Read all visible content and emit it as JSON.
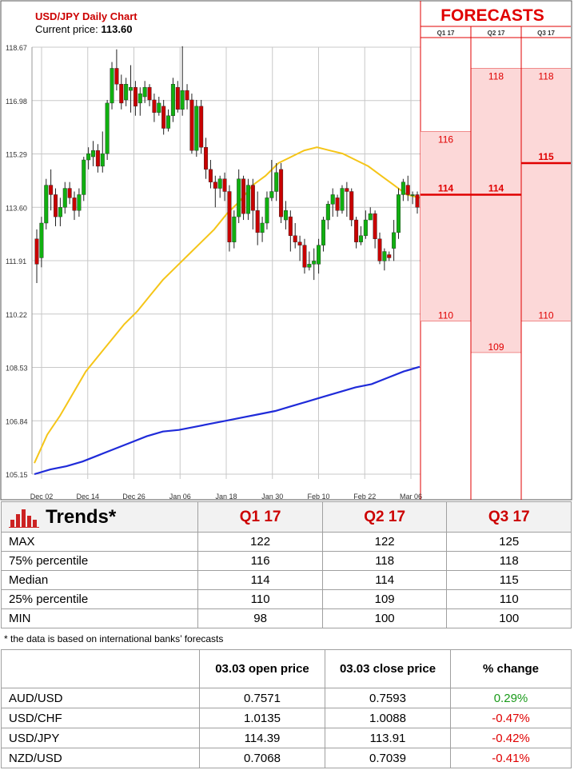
{
  "header": {
    "title": "USD/JPY Daily Chart",
    "price_label": "Current price:",
    "price_value": "113.60"
  },
  "forecasts": {
    "title": "FORECASTS",
    "quarters": [
      "Q1 17",
      "Q2 17",
      "Q3 17"
    ],
    "min_labels": [
      "110",
      "109",
      "110"
    ],
    "median_labels": [
      "114",
      "114",
      "115"
    ],
    "max_labels": [
      "116",
      "118",
      "118"
    ]
  },
  "chart_data": {
    "type": "candlestick",
    "title": "USD/JPY Daily Chart",
    "ylim": [
      105.15,
      118.67
    ],
    "y_ticks": [
      "118.67",
      "116.98",
      "115.29",
      "113.60",
      "111.91",
      "110.22",
      "108.53",
      "106.84",
      "105.15"
    ],
    "x_ticks": [
      "Dec 02",
      "Dec 14",
      "Dec 26",
      "Jan 06",
      "Jan 18",
      "Jan 30",
      "Feb 10",
      "Feb 22",
      "Mar 06"
    ],
    "candles": [
      [
        112.6,
        111.8,
        112.9,
        111.2
      ],
      [
        112.0,
        113.1,
        113.3,
        111.7
      ],
      [
        113.1,
        114.3,
        114.5,
        112.9
      ],
      [
        114.3,
        114.0,
        114.8,
        113.5
      ],
      [
        114.0,
        113.3,
        114.2,
        113.0
      ],
      [
        113.3,
        113.6,
        113.9,
        113.0
      ],
      [
        113.6,
        114.2,
        114.4,
        113.4
      ],
      [
        114.2,
        113.9,
        114.4,
        113.7
      ],
      [
        113.9,
        113.5,
        114.1,
        113.2
      ],
      [
        113.5,
        114.0,
        114.2,
        113.3
      ],
      [
        114.0,
        115.1,
        115.2,
        113.8
      ],
      [
        115.1,
        115.3,
        115.5,
        114.8
      ],
      [
        115.2,
        115.4,
        115.7,
        114.9
      ],
      [
        115.4,
        114.9,
        115.6,
        114.7
      ],
      [
        114.9,
        115.3,
        116.0,
        114.7
      ],
      [
        115.3,
        116.9,
        117.0,
        115.1
      ],
      [
        116.9,
        118.0,
        118.2,
        116.7
      ],
      [
        118.0,
        117.5,
        118.6,
        117.3
      ],
      [
        117.5,
        116.9,
        117.8,
        116.7
      ],
      [
        117.0,
        117.5,
        117.7,
        116.8
      ],
      [
        117.3,
        117.4,
        118.1,
        116.6
      ],
      [
        117.4,
        116.8,
        117.6,
        116.5
      ],
      [
        116.9,
        117.2,
        117.4,
        116.5
      ],
      [
        117.1,
        117.4,
        117.6,
        116.9
      ],
      [
        117.4,
        117.0,
        117.5,
        116.8
      ],
      [
        117.0,
        116.6,
        117.2,
        116.3
      ],
      [
        116.6,
        116.9,
        117.1,
        116.5
      ],
      [
        116.8,
        116.1,
        117.0,
        115.9
      ],
      [
        116.1,
        116.5,
        116.7,
        116.0
      ],
      [
        116.5,
        117.5,
        117.7,
        116.3
      ],
      [
        117.4,
        116.7,
        117.6,
        116.6
      ],
      [
        116.7,
        117.3,
        118.7,
        116.5
      ],
      [
        117.3,
        117.0,
        117.5,
        116.7
      ],
      [
        117.0,
        115.4,
        117.2,
        115.3
      ],
      [
        115.4,
        116.8,
        117.0,
        115.2
      ],
      [
        116.8,
        115.5,
        117.0,
        115.3
      ],
      [
        115.5,
        114.8,
        115.8,
        114.5
      ],
      [
        114.8,
        114.4,
        115.1,
        114.2
      ],
      [
        114.4,
        114.2,
        114.6,
        113.6
      ],
      [
        114.2,
        114.5,
        114.6,
        113.9
      ],
      [
        114.5,
        114.1,
        114.7,
        113.8
      ],
      [
        114.1,
        112.5,
        114.3,
        112.2
      ],
      [
        112.5,
        113.3,
        113.5,
        112.3
      ],
      [
        113.3,
        114.5,
        114.8,
        113.1
      ],
      [
        114.5,
        113.4,
        114.6,
        113.2
      ],
      [
        113.4,
        114.3,
        114.5,
        113.2
      ],
      [
        114.3,
        113.5,
        114.5,
        112.9
      ],
      [
        113.5,
        112.8,
        114.1,
        112.4
      ],
      [
        112.8,
        113.1,
        113.3,
        112.5
      ],
      [
        113.1,
        113.9,
        114.1,
        112.9
      ],
      [
        113.9,
        114.1,
        115.1,
        113.8
      ],
      [
        114.1,
        114.7,
        115.0,
        113.8
      ],
      [
        114.8,
        113.3,
        115.0,
        113.1
      ],
      [
        113.2,
        113.5,
        113.8,
        112.9
      ],
      [
        113.3,
        112.7,
        113.5,
        112.2
      ],
      [
        112.7,
        112.5,
        113.1,
        112.3
      ],
      [
        112.5,
        112.4,
        112.7,
        111.9
      ],
      [
        112.4,
        111.7,
        112.6,
        111.5
      ],
      [
        111.7,
        111.8,
        112.2,
        111.6
      ],
      [
        111.8,
        111.9,
        112.3,
        111.3
      ],
      [
        111.8,
        112.4,
        112.6,
        111.5
      ],
      [
        112.4,
        113.2,
        113.3,
        112.2
      ],
      [
        113.2,
        113.7,
        113.8,
        112.9
      ],
      [
        113.7,
        114.0,
        114.2,
        113.3
      ],
      [
        113.9,
        113.5,
        114.0,
        113.3
      ],
      [
        113.5,
        114.2,
        114.3,
        113.4
      ],
      [
        114.2,
        114.1,
        114.4,
        113.3
      ],
      [
        114.1,
        113.2,
        114.2,
        113.0
      ],
      [
        113.2,
        112.5,
        113.3,
        112.3
      ],
      [
        112.5,
        112.7,
        113.0,
        112.4
      ],
      [
        112.7,
        113.2,
        113.5,
        112.6
      ],
      [
        113.2,
        113.4,
        113.6,
        113.2
      ],
      [
        113.4,
        112.6,
        113.5,
        112.3
      ],
      [
        112.6,
        111.9,
        112.8,
        111.8
      ],
      [
        111.9,
        112.2,
        112.3,
        111.6
      ],
      [
        112.1,
        112.0,
        112.2,
        111.9
      ],
      [
        112.3,
        112.8,
        113.2,
        111.9
      ],
      [
        112.8,
        114.0,
        114.2,
        112.6
      ],
      [
        114.0,
        114.4,
        114.5,
        113.8
      ],
      [
        114.3,
        114.0,
        114.6,
        113.8
      ],
      [
        114.0,
        114.0,
        114.1,
        113.7
      ],
      [
        114.0,
        113.6,
        114.1,
        113.4
      ]
    ],
    "sma50": [
      105.5,
      106.4,
      107.0,
      107.7,
      108.4,
      108.9,
      109.4,
      109.9,
      110.3,
      110.8,
      111.3,
      111.7,
      112.1,
      112.5,
      112.9,
      113.4,
      113.8,
      114.3,
      114.6,
      115.0,
      115.2,
      115.4,
      115.5,
      115.4,
      115.3,
      115.1,
      114.9,
      114.6,
      114.3,
      114.0,
      113.9
    ],
    "sma200": [
      105.15,
      105.3,
      105.4,
      105.55,
      105.75,
      105.95,
      106.15,
      106.35,
      106.5,
      106.55,
      106.65,
      106.75,
      106.85,
      106.95,
      107.05,
      107.15,
      107.3,
      107.45,
      107.6,
      107.75,
      107.9,
      108.0,
      108.2,
      108.4,
      108.55
    ],
    "series": [
      {
        "name": "",
        "color": "#f5c518"
      },
      {
        "name": "",
        "color": "#1f2bd9"
      }
    ],
    "forecast_bands": [
      {
        "quarter": "Q1 17",
        "min": 110,
        "median": 114,
        "max": 116
      },
      {
        "quarter": "Q2 17",
        "min": 109,
        "median": 114,
        "max": 118
      },
      {
        "quarter": "Q3 17",
        "min": 110,
        "median": 115,
        "max": 118
      }
    ],
    "colors": {
      "bull": "#10b010",
      "bear": "#c80000",
      "band_fill": "#fcd8d8",
      "band_line": "#e00000",
      "grid": "#c8c8c8"
    }
  },
  "trends": {
    "title": "Trends*",
    "columns": [
      "Q1 17",
      "Q2 17",
      "Q3 17"
    ],
    "rows": [
      {
        "label": "MAX",
        "values": [
          "122",
          "122",
          "125"
        ]
      },
      {
        "label": "75% percentile",
        "values": [
          "116",
          "118",
          "118"
        ]
      },
      {
        "label": "Median",
        "values": [
          "114",
          "114",
          "115"
        ]
      },
      {
        "label": "25% percentile",
        "values": [
          "110",
          "109",
          "110"
        ]
      },
      {
        "label": "MIN",
        "values": [
          "98",
          "100",
          "100"
        ]
      }
    ],
    "note": "* the data is based on international banks’ forecasts"
  },
  "fx_table": {
    "headers": [
      "",
      "03.03 open price",
      "03.03 close price",
      "% change"
    ],
    "rows": [
      {
        "pair": "AUD/USD",
        "open": "0.7571",
        "close": "0.7593",
        "change": "0.29%",
        "dir": "pos"
      },
      {
        "pair": "USD/CHF",
        "open": "1.0135",
        "close": "1.0088",
        "change": "-0.47%",
        "dir": "neg"
      },
      {
        "pair": "USD/JPY",
        "open": "114.39",
        "close": "113.91",
        "change": "-0.42%",
        "dir": "neg"
      },
      {
        "pair": "NZD/USD",
        "open": "0.7068",
        "close": "0.7039",
        "change": "-0.41%",
        "dir": "neg"
      }
    ]
  }
}
